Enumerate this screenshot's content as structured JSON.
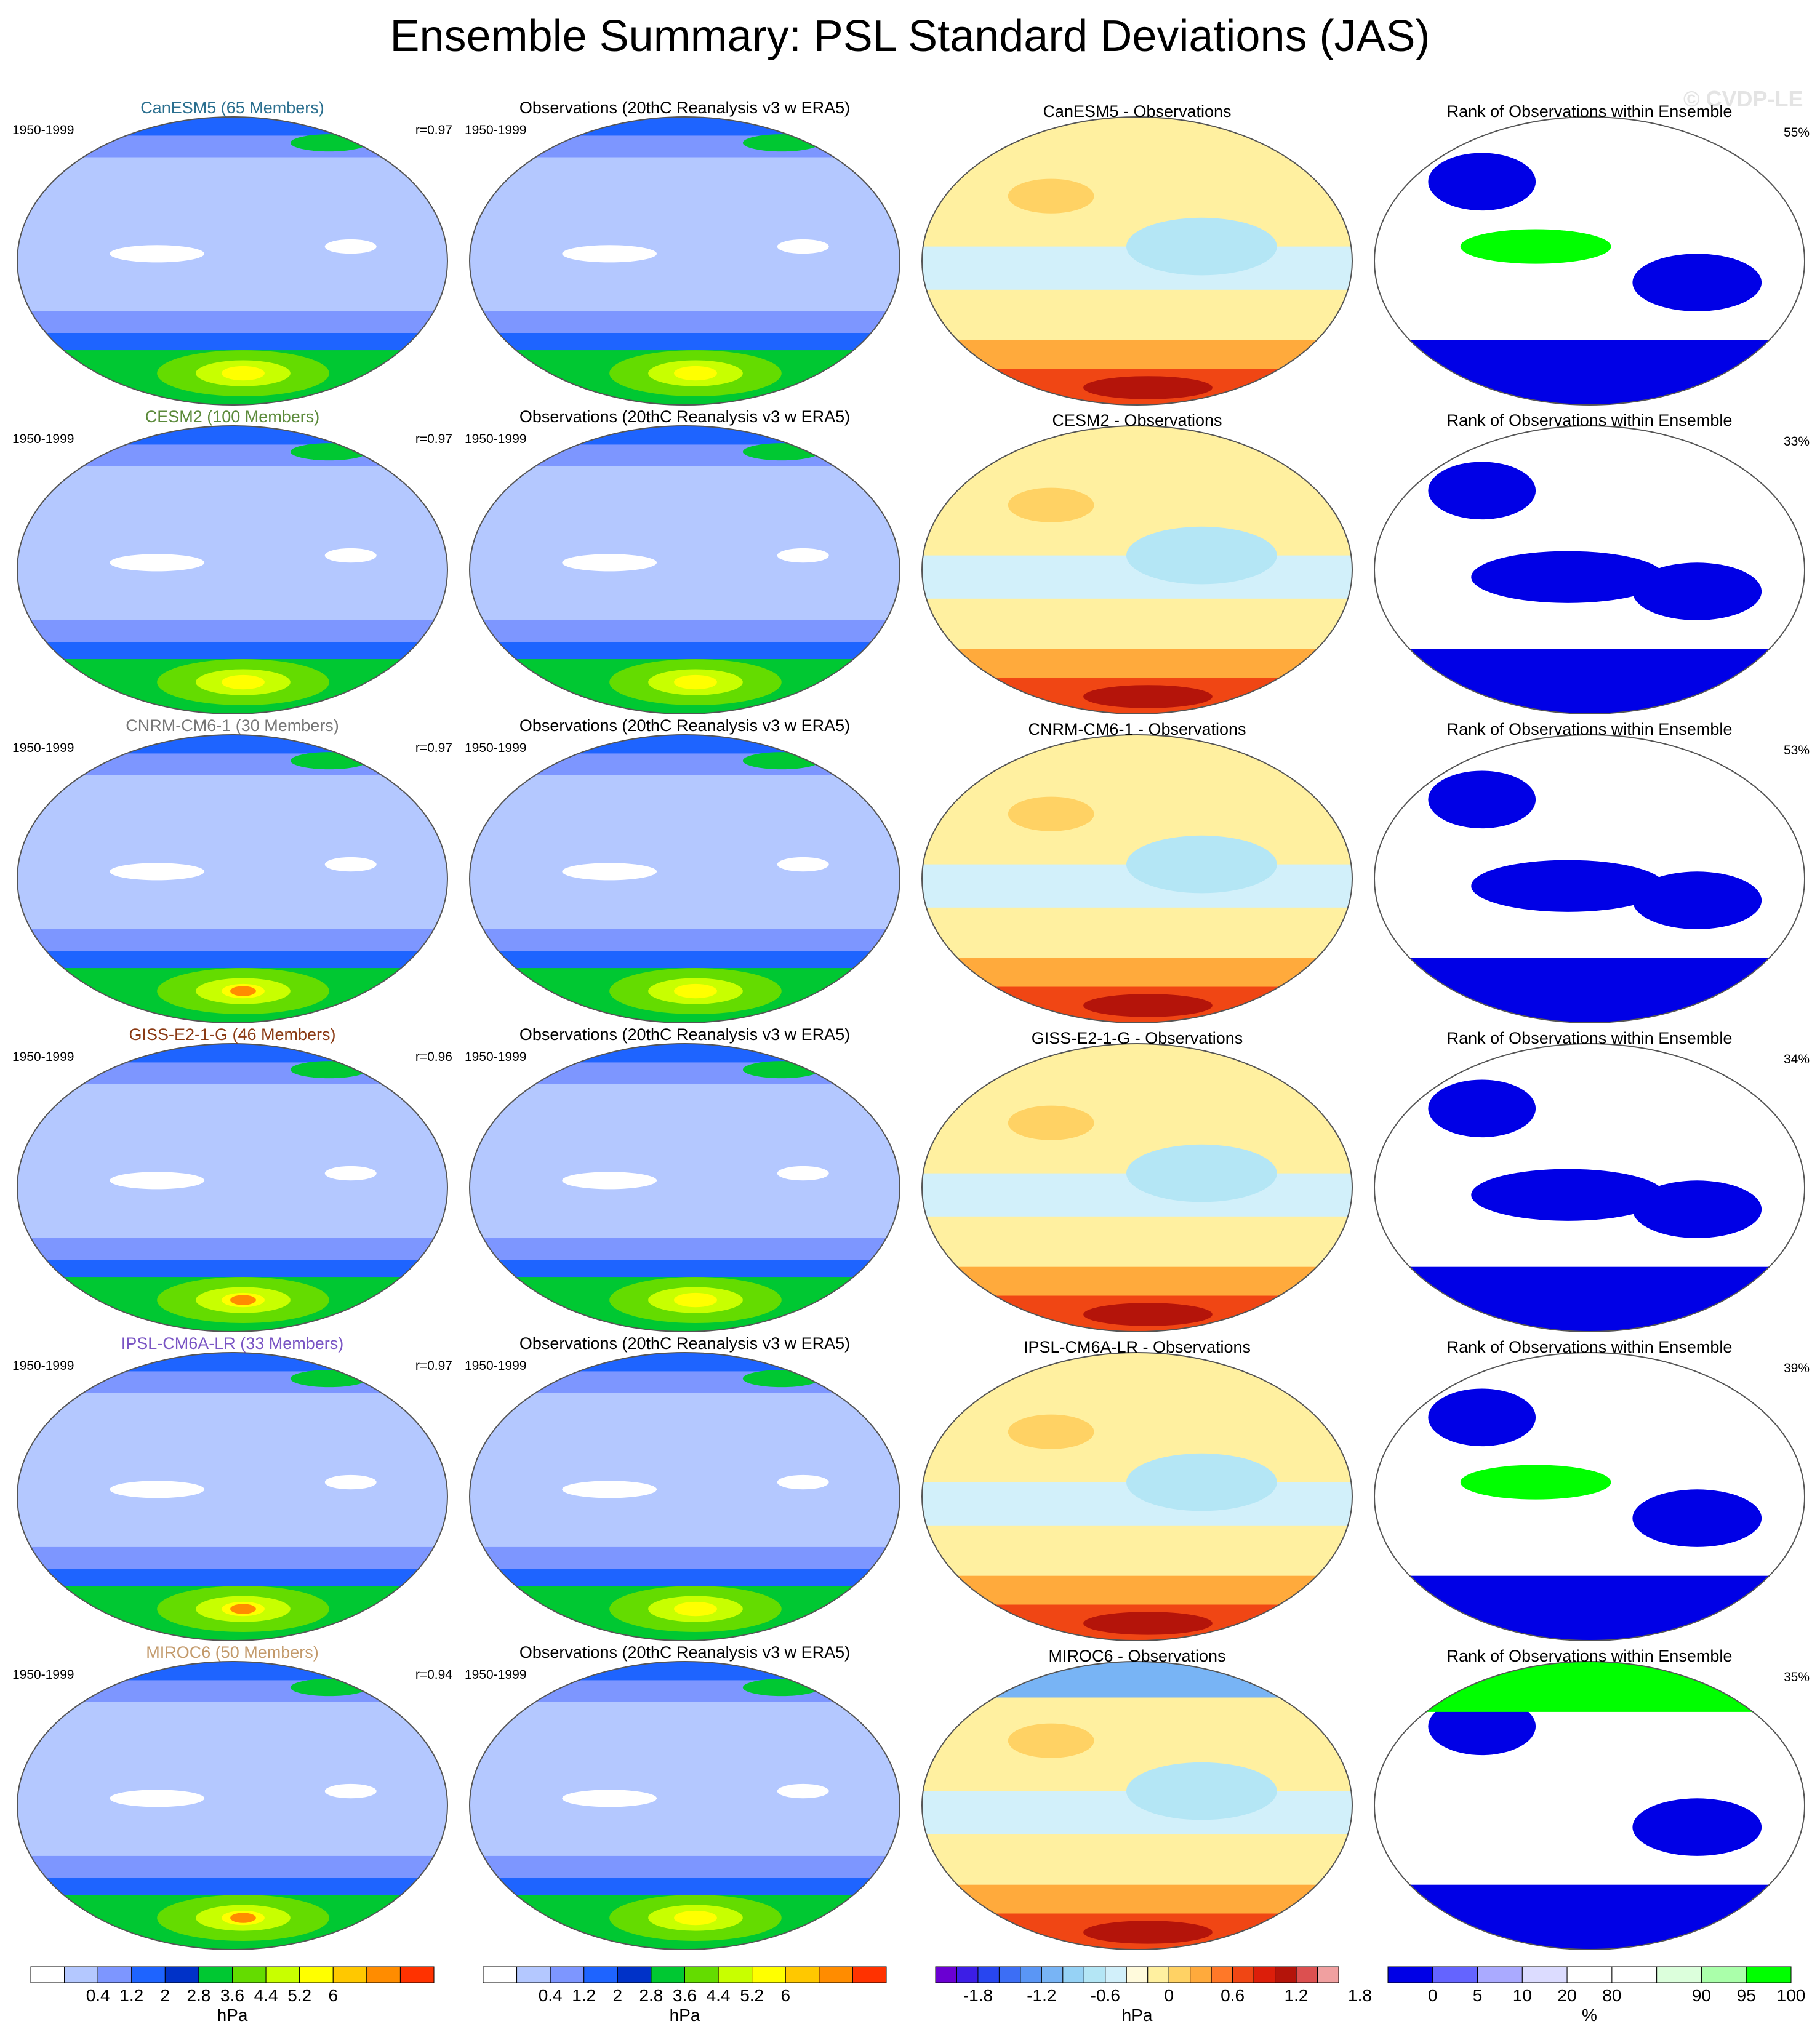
{
  "title": "Ensemble Summary: PSL Standard Deviations (JAS)",
  "watermark": "© CVDP-LE",
  "period": "1950-1999",
  "obs_title": "Observations (20thC Reanalysis v3 w ERA5)",
  "rank_title": "Rank of Observations within Ensemble",
  "models": [
    {
      "name": "CanESM5",
      "title": "CanESM5 (65 Members)",
      "title_color": "#2a6f8f",
      "r": "r=0.97",
      "diff_title": "CanESM5 - Observations",
      "rank_pct": "55%"
    },
    {
      "name": "CESM2",
      "title": "CESM2 (100 Members)",
      "title_color": "#5b8a3a",
      "r": "r=0.97",
      "diff_title": "CESM2 - Observations",
      "rank_pct": "33%"
    },
    {
      "name": "CNRM-CM6-1",
      "title": "CNRM-CM6-1 (30 Members)",
      "title_color": "#777777",
      "r": "r=0.97",
      "diff_title": "CNRM-CM6-1 - Observations",
      "rank_pct": "53%"
    },
    {
      "name": "GISS-E2-1-G",
      "title": "GISS-E2-1-G (46 Members)",
      "title_color": "#8a3a14",
      "r": "r=0.96",
      "diff_title": "GISS-E2-1-G - Observations",
      "rank_pct": "34%"
    },
    {
      "name": "IPSL-CM6A-LR",
      "title": "IPSL-CM6A-LR (33 Members)",
      "title_color": "#7a55c4",
      "r": "r=0.97",
      "diff_title": "IPSL-CM6A-LR - Observations",
      "rank_pct": "39%"
    },
    {
      "name": "MIROC6",
      "title": "MIROC6 (50 Members)",
      "title_color": "#c39a6b",
      "r": "r=0.94",
      "diff_title": "MIROC6 - Observations",
      "rank_pct": "35%"
    }
  ],
  "colorbars": [
    {
      "id": "std_model",
      "unit": "hPa",
      "colors": [
        "#ffffff",
        "#b4c8ff",
        "#7d96ff",
        "#1e64ff",
        "#0032c8",
        "#00c832",
        "#64dc00",
        "#c8ff00",
        "#ffff00",
        "#ffc800",
        "#ff8c00",
        "#ff3200"
      ],
      "labels": [
        "0.4",
        "1.2",
        "2",
        "2.8",
        "3.6",
        "4.4",
        "5.2",
        "6"
      ]
    },
    {
      "id": "std_obs",
      "unit": "hPa",
      "colors": [
        "#ffffff",
        "#b4c8ff",
        "#7d96ff",
        "#1e64ff",
        "#0032c8",
        "#00c832",
        "#64dc00",
        "#c8ff00",
        "#ffff00",
        "#ffc800",
        "#ff8c00",
        "#ff3200"
      ],
      "labels": [
        "0.4",
        "1.2",
        "2",
        "2.8",
        "3.6",
        "4.4",
        "5.2",
        "6"
      ]
    },
    {
      "id": "diff",
      "unit": "hPa",
      "colors": [
        "#6a00d2",
        "#3c1ee6",
        "#2846f0",
        "#3c6ef5",
        "#5a96f5",
        "#78b4f5",
        "#96d2f5",
        "#b4e6f5",
        "#d2f0fa",
        "#fffadc",
        "#fff0a0",
        "#ffd264",
        "#ffaa3c",
        "#ff7828",
        "#f04614",
        "#dc1e0a",
        "#b4140a",
        "#dc5050",
        "#f0a0a0"
      ],
      "labels": [
        "-1.8",
        "-1.2",
        "-0.6",
        "0",
        "0.6",
        "1.2",
        "1.8"
      ]
    },
    {
      "id": "rank",
      "unit": "%",
      "colors": [
        "#0000e6",
        "#6464ff",
        "#aaaaff",
        "#dcdcff",
        "#ffffff",
        "#ffffff",
        "#dcffdc",
        "#aaffaa",
        "#00ff00"
      ],
      "labels": [
        "0",
        "5",
        "10",
        "20",
        "80",
        "90",
        "95",
        "100"
      ]
    }
  ]
}
